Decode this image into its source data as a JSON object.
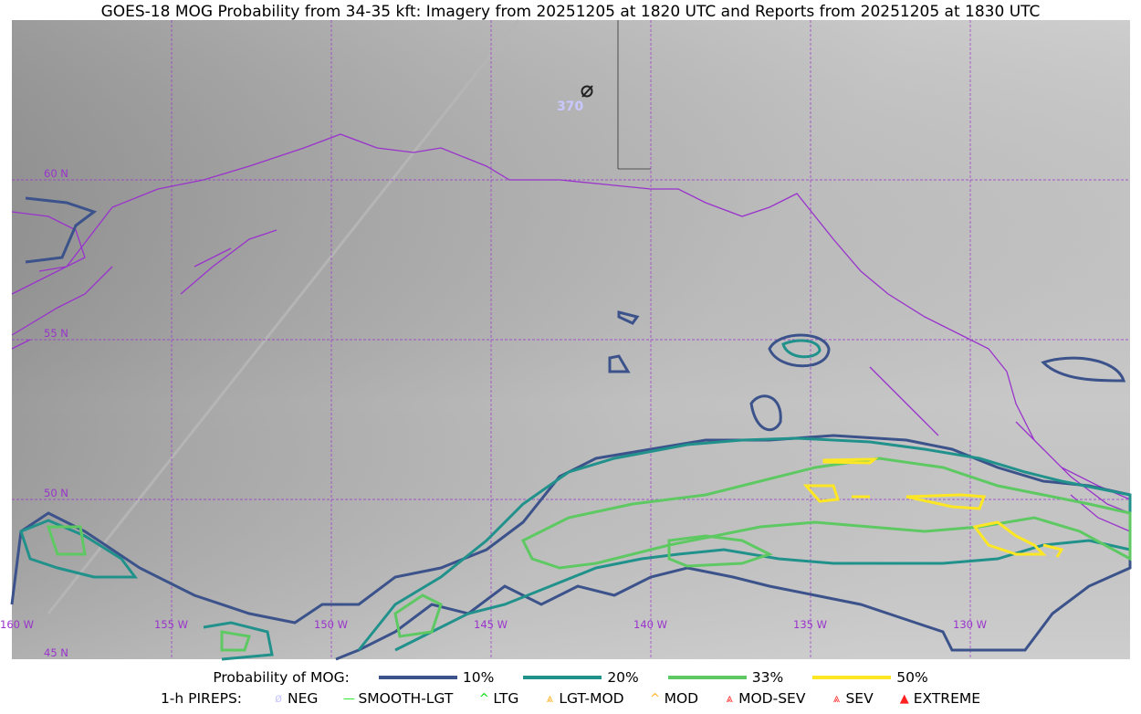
{
  "title": "GOES-18 MOG Probability from 34-35 kft: Imagery from 20251205 at 1820 UTC and Reports from 20251205 at 1830 UTC",
  "map": {
    "lat_labels": [
      "60 N",
      "55 N",
      "50 N",
      "45 N"
    ],
    "lon_labels": [
      "160 W",
      "155 W",
      "150 W",
      "145 W",
      "140 W",
      "135 W",
      "130 W"
    ],
    "coastline_color": "#9933cc",
    "grid_color": "#9933cc",
    "report": {
      "icon": "neg-pirep-icon",
      "altitude": "370"
    }
  },
  "legend": {
    "prob_label": "Probability of MOG:",
    "prob_items": [
      {
        "label": "10%",
        "color": "#3b528b"
      },
      {
        "label": "20%",
        "color": "#21918c"
      },
      {
        "label": "33%",
        "color": "#5ec962"
      },
      {
        "label": "50%",
        "color": "#fde725"
      }
    ],
    "pirep_label": "1-h PIREPS:",
    "pirep_items": [
      {
        "label": "NEG",
        "icon": "neg-icon",
        "symbol": "ø",
        "color": "#c8c8ff"
      },
      {
        "label": "SMOOTH-LGT",
        "icon": "smooth-lgt-icon",
        "symbol": "—",
        "color": "#22ee22"
      },
      {
        "label": "LTG",
        "icon": "ltg-icon",
        "symbol": "^",
        "color": "#00dd00"
      },
      {
        "label": "LGT-MOD",
        "icon": "lgt-mod-icon",
        "symbol": "⩓",
        "color": "#ffb020"
      },
      {
        "label": "MOD",
        "icon": "mod-icon",
        "symbol": "^",
        "color": "#ffb020"
      },
      {
        "label": "MOD-SEV",
        "icon": "mod-sev-icon",
        "symbol": "⩓",
        "color": "#ff3030"
      },
      {
        "label": "SEV",
        "icon": "sev-icon",
        "symbol": "⩓",
        "color": "#ff3030"
      },
      {
        "label": "EXTREME",
        "icon": "extreme-icon",
        "symbol": "▲",
        "color": "#ff2020"
      }
    ]
  }
}
